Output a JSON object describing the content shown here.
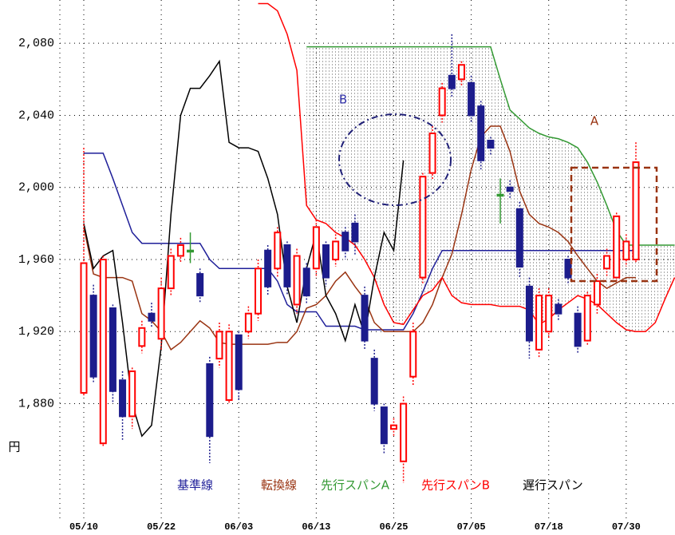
{
  "chart_data": {
    "type": "ichimoku",
    "ylabel": "円",
    "annotations": [
      "B",
      "A"
    ],
    "ylim": [
      1816,
      2104
    ],
    "yticks": [
      {
        "value": 1880,
        "label": "1,880"
      },
      {
        "value": 1920,
        "label": "1,920"
      },
      {
        "value": 1960,
        "label": "1,960"
      },
      {
        "value": 2000,
        "label": "2,000"
      },
      {
        "value": 2040,
        "label": "2,040"
      },
      {
        "value": 2080,
        "label": "2,080"
      }
    ],
    "grid": true,
    "categories": [
      "05/10",
      null,
      null,
      null,
      null,
      null,
      null,
      null,
      "05/22",
      null,
      null,
      null,
      null,
      null,
      null,
      null,
      "06/03",
      null,
      null,
      null,
      null,
      null,
      null,
      null,
      "06/13",
      null,
      null,
      null,
      null,
      null,
      null,
      null,
      "06/25",
      null,
      null,
      null,
      null,
      null,
      null,
      null,
      "07/05",
      null,
      null,
      null,
      null,
      null,
      null,
      null,
      "07/18",
      null,
      null,
      null,
      null,
      null,
      null,
      null,
      "07/30",
      null,
      null,
      null,
      null,
      null
    ],
    "candles": {
      "up_color": "#ff0000",
      "down_color": "#1c1c8c",
      "doji_color": "#339933",
      "open": [
        1886,
        1940,
        1858,
        1933,
        1893,
        1873,
        1912,
        1930,
        1916,
        1944,
        1962,
        1965,
        1952,
        1902,
        1905,
        1882,
        1918,
        1920,
        1930,
        1965,
        1955,
        1968,
        1935,
        1955,
        1955,
        1968,
        1960,
        1975,
        1980,
        1940,
        1905,
        1878,
        1866,
        1848,
        1895,
        1950,
        2008,
        2040,
        2062,
        2060,
        2058,
        2045,
        2026,
        1996,
        2000,
        1988,
        1945,
        1910,
        1920,
        1935,
        1960,
        1930,
        1915,
        1935,
        1955,
        1950,
        1960,
        1960,
        null,
        null,
        null,
        null
      ],
      "high": [
        2022,
        1946,
        1962,
        1935,
        1898,
        1900,
        1926,
        1936,
        1950,
        1966,
        1972,
        1975,
        1955,
        1906,
        1925,
        1924,
        1920,
        1934,
        1960,
        1968,
        1978,
        1970,
        1966,
        1958,
        1982,
        1970,
        1974,
        1978,
        1985,
        1945,
        1910,
        1880,
        1872,
        1884,
        1925,
        2008,
        2034,
        2058,
        2085,
        2070,
        2062,
        2048,
        2028,
        2005,
        2004,
        1992,
        1950,
        1944,
        1944,
        1938,
        1962,
        1934,
        1942,
        1952,
        1966,
        1986,
        1974,
        2025,
        null,
        null,
        null,
        null
      ],
      "low": [
        1884,
        1892,
        1856,
        1880,
        1860,
        1866,
        1908,
        1922,
        1910,
        1940,
        1958,
        1958,
        1936,
        1847,
        1900,
        1880,
        1882,
        1916,
        1926,
        1940,
        1950,
        1940,
        1930,
        1935,
        1950,
        1945,
        1956,
        1960,
        1962,
        1910,
        1876,
        1852,
        1862,
        1836,
        1890,
        1946,
        2004,
        2036,
        2050,
        2056,
        2036,
        2010,
        2018,
        1980,
        1994,
        1950,
        1905,
        1905,
        1916,
        1926,
        1946,
        1908,
        1912,
        1930,
        1950,
        1948,
        1956,
        1958,
        null,
        null,
        null,
        null
      ],
      "close": [
        1958,
        1895,
        1960,
        1887,
        1873,
        1898,
        1922,
        1926,
        1944,
        1962,
        1968,
        1965,
        1940,
        1862,
        1920,
        1920,
        1888,
        1930,
        1955,
        1945,
        1975,
        1945,
        1962,
        1940,
        1978,
        1950,
        1970,
        1965,
        1970,
        1915,
        1880,
        1858,
        1868,
        1880,
        1920,
        2006,
        2030,
        2055,
        2055,
        2068,
        2040,
        2015,
        2022,
        1996,
        1998,
        1956,
        1915,
        1940,
        1940,
        1930,
        1950,
        1912,
        1940,
        1948,
        1962,
        1984,
        1970,
        2014,
        null,
        null,
        null,
        null
      ]
    },
    "series": [
      {
        "name": "基準線",
        "color": "#1f1f99",
        "values": [
          2019,
          2019,
          2019,
          2005,
          1990,
          1975,
          1969,
          1969,
          1969,
          1969,
          1969,
          1969,
          1969,
          1960,
          1955,
          1955,
          1955,
          1955,
          1955,
          1955,
          1948,
          1935,
          1931,
          1931,
          1931,
          1923,
          1923,
          1923,
          1923,
          1921,
          1921,
          1921,
          1921,
          1921,
          1930,
          1942,
          1955,
          1965,
          1965,
          1965,
          1965,
          1965,
          1965,
          1965,
          1965,
          1965,
          1965,
          1965,
          1965,
          1965,
          1965,
          1965,
          1965,
          1965,
          1965,
          1965,
          1965,
          1965,
          null,
          null,
          null,
          null
        ]
      },
      {
        "name": "転換線",
        "color": "#993311",
        "values": [
          1978,
          1952,
          1950,
          1950,
          1950,
          1948,
          1930,
          1926,
          1920,
          1910,
          1914,
          1920,
          1926,
          1922,
          1914,
          1913,
          1913,
          1913,
          1913,
          1913,
          1914,
          1914,
          1920,
          1933,
          1935,
          1940,
          1948,
          1953,
          1945,
          1938,
          1925,
          1920,
          1920,
          1920,
          1920,
          1925,
          1935,
          1950,
          1963,
          1985,
          2010,
          2028,
          2034,
          2034,
          2020,
          1998,
          1985,
          1980,
          1978,
          1975,
          1970,
          1962,
          1955,
          1948,
          1944,
          1947,
          1950,
          1950,
          null,
          null,
          null,
          null
        ]
      },
      {
        "name": "先行スパンA",
        "color": "#339933",
        "values": [
          null,
          null,
          null,
          null,
          null,
          null,
          null,
          null,
          null,
          null,
          null,
          null,
          null,
          null,
          null,
          null,
          null,
          null,
          null,
          null,
          null,
          null,
          null,
          2078,
          2078,
          2078,
          2078,
          2078,
          2078,
          2078,
          2078,
          2078,
          2078,
          2078,
          2078,
          2078,
          2078,
          2078,
          2078,
          2078,
          2078,
          2078,
          2078,
          2060,
          2043,
          2038,
          2033,
          2030,
          2028,
          2027,
          2025,
          2022,
          2014,
          2003,
          1990,
          1976,
          1968,
          1968,
          1968,
          1968,
          1968,
          1968
        ]
      },
      {
        "name": "先行スパンB",
        "color": "#ff0000",
        "values": [
          null,
          null,
          null,
          null,
          null,
          null,
          null,
          null,
          null,
          null,
          null,
          null,
          null,
          null,
          null,
          null,
          null,
          null,
          2102,
          2102,
          2098,
          2085,
          2065,
          1990,
          1982,
          1980,
          1975,
          1972,
          1968,
          1960,
          1950,
          1935,
          1925,
          1924,
          1932,
          1940,
          1943,
          1950,
          1940,
          1936,
          1935,
          1935,
          1935,
          1934,
          1934,
          1934,
          1932,
          1924,
          1927,
          1932,
          1936,
          1940,
          1938,
          1935,
          1930,
          1925,
          1921,
          1920,
          1920,
          1925,
          1938,
          1950
        ]
      },
      {
        "name": "遅行スパン",
        "color": "#000000",
        "values": [
          1980,
          1955,
          1962,
          1965,
          1925,
          1880,
          1862,
          1868,
          1912,
          1985,
          2040,
          2055,
          2055,
          2062,
          2070,
          2025,
          2022,
          2022,
          2020,
          2005,
          1985,
          1945,
          1925,
          1955,
          1975,
          1940,
          1930,
          1915,
          1935,
          1918,
          1950,
          1975,
          1965,
          2015,
          null,
          null,
          null,
          null,
          null,
          null,
          null,
          null,
          null,
          null,
          null,
          null,
          null,
          null,
          null,
          null,
          null,
          null,
          null,
          null,
          null,
          null,
          null,
          null,
          null,
          null,
          null,
          null
        ]
      }
    ]
  }
}
